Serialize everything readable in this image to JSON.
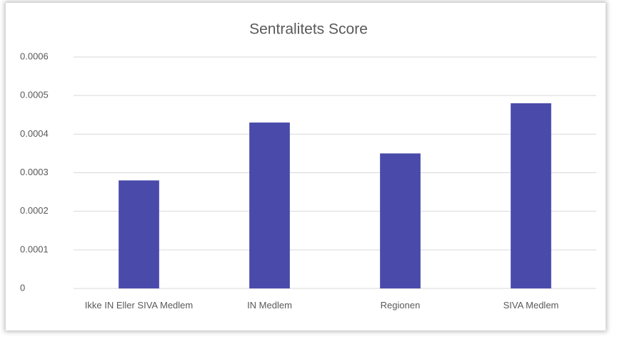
{
  "chart_data": {
    "type": "bar",
    "title": "Sentralitets Score",
    "categories": [
      "Ikke IN Eller SIVA Medlem",
      "IN Medlem",
      "Regionen",
      "SIVA Medlem"
    ],
    "values": [
      0.00028,
      0.00043,
      0.00035,
      0.00048
    ],
    "color": "#4a4aab",
    "ylim": [
      0,
      0.0006
    ],
    "yticks": [
      0,
      0.0001,
      0.0002,
      0.0003,
      0.0004,
      0.0005,
      0.0006
    ],
    "grid": true
  }
}
